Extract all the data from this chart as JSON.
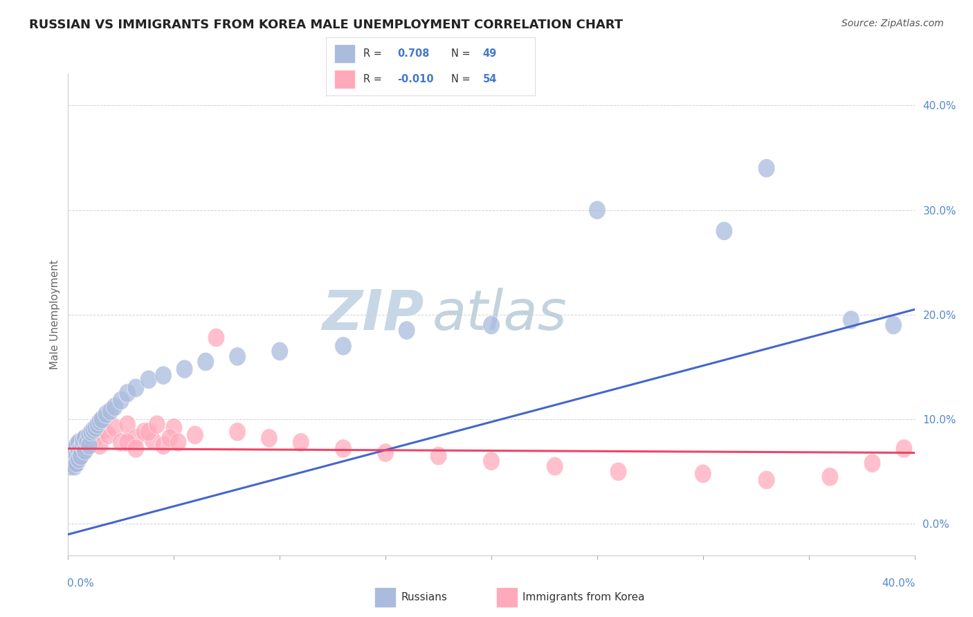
{
  "title": "RUSSIAN VS IMMIGRANTS FROM KOREA MALE UNEMPLOYMENT CORRELATION CHART",
  "source": "Source: ZipAtlas.com",
  "ylabel": "Male Unemployment",
  "ytick_labels": [
    "0.0%",
    "10.0%",
    "20.0%",
    "30.0%",
    "40.0%"
  ],
  "ytick_values": [
    0.0,
    0.1,
    0.2,
    0.3,
    0.4
  ],
  "xlim": [
    0.0,
    0.4
  ],
  "ylim": [
    -0.03,
    0.43
  ],
  "blue_color": "#aabbdd",
  "pink_color": "#ffaabb",
  "blue_edge_color": "#8899bb",
  "pink_edge_color": "#dd8899",
  "blue_line_color": "#4466cc",
  "pink_line_color": "#ee4466",
  "watermark_zip": "ZIP",
  "watermark_atlas": "atlas",
  "watermark_color_zip": "#c5d5e5",
  "watermark_color_atlas": "#b8ccd8",
  "background_color": "#ffffff",
  "grid_color": "#cccccc",
  "russians_x": [
    0.001,
    0.001,
    0.002,
    0.002,
    0.002,
    0.003,
    0.003,
    0.003,
    0.004,
    0.004,
    0.004,
    0.005,
    0.005,
    0.005,
    0.006,
    0.006,
    0.007,
    0.007,
    0.008,
    0.008,
    0.009,
    0.01,
    0.01,
    0.011,
    0.012,
    0.013,
    0.014,
    0.015,
    0.016,
    0.018,
    0.02,
    0.022,
    0.025,
    0.028,
    0.032,
    0.038,
    0.045,
    0.055,
    0.065,
    0.08,
    0.1,
    0.13,
    0.16,
    0.2,
    0.25,
    0.31,
    0.33,
    0.37,
    0.39
  ],
  "russians_y": [
    0.065,
    0.055,
    0.06,
    0.07,
    0.058,
    0.068,
    0.072,
    0.055,
    0.065,
    0.075,
    0.058,
    0.07,
    0.062,
    0.078,
    0.072,
    0.065,
    0.075,
    0.08,
    0.07,
    0.082,
    0.078,
    0.085,
    0.075,
    0.088,
    0.09,
    0.092,
    0.095,
    0.098,
    0.1,
    0.105,
    0.108,
    0.112,
    0.118,
    0.125,
    0.13,
    0.138,
    0.142,
    0.148,
    0.155,
    0.16,
    0.165,
    0.17,
    0.185,
    0.19,
    0.3,
    0.28,
    0.34,
    0.195,
    0.19
  ],
  "korea_x": [
    0.001,
    0.001,
    0.002,
    0.002,
    0.003,
    0.003,
    0.003,
    0.004,
    0.004,
    0.005,
    0.005,
    0.006,
    0.006,
    0.007,
    0.007,
    0.008,
    0.009,
    0.01,
    0.011,
    0.012,
    0.013,
    0.015,
    0.017,
    0.019,
    0.022,
    0.025,
    0.028,
    0.032,
    0.036,
    0.04,
    0.045,
    0.05,
    0.06,
    0.07,
    0.08,
    0.095,
    0.11,
    0.13,
    0.15,
    0.175,
    0.2,
    0.23,
    0.26,
    0.3,
    0.33,
    0.36,
    0.38,
    0.395,
    0.038,
    0.028,
    0.032,
    0.042,
    0.048,
    0.052
  ],
  "korea_y": [
    0.065,
    0.055,
    0.07,
    0.06,
    0.072,
    0.068,
    0.058,
    0.075,
    0.065,
    0.07,
    0.062,
    0.078,
    0.072,
    0.08,
    0.068,
    0.075,
    0.082,
    0.078,
    0.085,
    0.08,
    0.088,
    0.075,
    0.09,
    0.085,
    0.092,
    0.078,
    0.095,
    0.082,
    0.088,
    0.08,
    0.075,
    0.092,
    0.085,
    0.178,
    0.088,
    0.082,
    0.078,
    0.072,
    0.068,
    0.065,
    0.06,
    0.055,
    0.05,
    0.048,
    0.042,
    0.045,
    0.058,
    0.072,
    0.088,
    0.078,
    0.072,
    0.095,
    0.082,
    0.078
  ],
  "blue_trendline_x": [
    0.0,
    0.4
  ],
  "blue_trendline_y": [
    -0.01,
    0.205
  ],
  "pink_trendline_x": [
    0.0,
    0.4
  ],
  "pink_trendline_y": [
    0.072,
    0.068
  ]
}
